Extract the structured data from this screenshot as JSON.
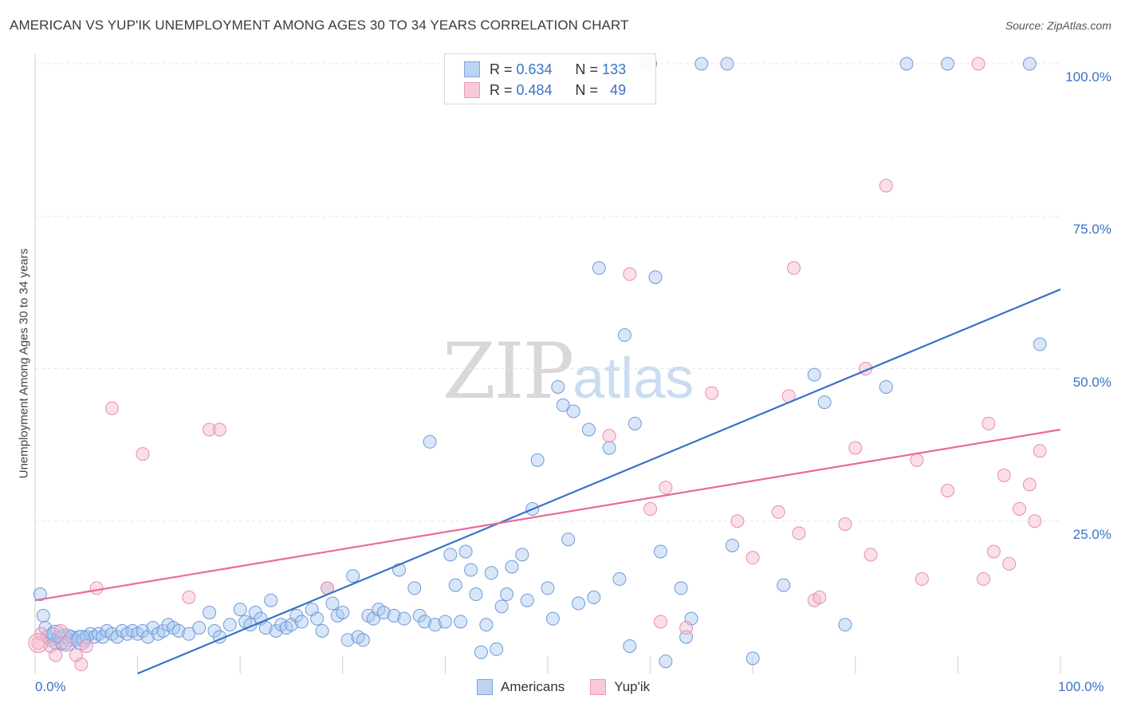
{
  "title": "AMERICAN VS YUP'IK UNEMPLOYMENT AMONG AGES 30 TO 34 YEARS CORRELATION CHART",
  "source": "Source: ZipAtlas.com",
  "watermark": {
    "zip": "ZIP",
    "atlas": "atlas"
  },
  "colors": {
    "blue": "#3a72c4",
    "blue_fill": "#a9c8f0",
    "pink": "#e86a9a",
    "pink_fill": "#f5b8cc",
    "grid": "#e6e6e6"
  },
  "legend_top": {
    "rows": [
      {
        "r_key": "R =",
        "r_value": "0.634",
        "n_key": "N =",
        "n_value": "133"
      },
      {
        "r_key": "R =",
        "r_value": "0.484",
        "n_key": "N =",
        "n_value": "49"
      }
    ]
  },
  "chart_data": {
    "type": "scatter",
    "title": "AMERICAN VS YUP'IK UNEMPLOYMENT AMONG AGES 30 TO 34 YEARS CORRELATION CHART",
    "xlabel": "",
    "ylabel": "Unemployment Among Ages 30 to 34 years",
    "xlim": [
      0,
      100
    ],
    "ylim": [
      0,
      100
    ],
    "x_tick_labels": [
      "0.0%",
      "100.0%"
    ],
    "y_tick_labels": [
      {
        "value": 25,
        "label": "25.0%"
      },
      {
        "value": 50,
        "label": "50.0%"
      },
      {
        "value": 75,
        "label": "75.0%"
      },
      {
        "value": 100,
        "label": "100.0%"
      }
    ],
    "grid": true,
    "legend_position": "bottom",
    "series": [
      {
        "name": "Americans",
        "R": 0.634,
        "N": 133,
        "trend": {
          "x": [
            0,
            100
          ],
          "y": [
            -7,
            63
          ]
        },
        "points": [
          [
            0.5,
            13
          ],
          [
            0.8,
            9.5
          ],
          [
            1,
            7.5
          ],
          [
            1.2,
            6
          ],
          [
            1.5,
            5.5
          ],
          [
            1.8,
            6.5
          ],
          [
            2,
            5
          ],
          [
            2.3,
            6
          ],
          [
            2.6,
            5
          ],
          [
            3,
            6
          ],
          [
            3.3,
            5.5
          ],
          [
            3.6,
            6
          ],
          [
            4,
            5.5
          ],
          [
            4.3,
            6
          ],
          [
            4.7,
            5.5
          ],
          [
            5,
            6
          ],
          [
            5.4,
            6.5
          ],
          [
            5.8,
            6
          ],
          [
            6.2,
            6.5
          ],
          [
            6.6,
            6
          ],
          [
            7,
            7
          ],
          [
            7.5,
            6.5
          ],
          [
            8,
            6
          ],
          [
            8.5,
            7
          ],
          [
            9,
            6.5
          ],
          [
            9.5,
            7
          ],
          [
            10,
            6.5
          ],
          [
            10.5,
            7
          ],
          [
            11,
            6
          ],
          [
            11.5,
            7.5
          ],
          [
            12,
            6.5
          ],
          [
            12.5,
            7
          ],
          [
            13,
            8
          ],
          [
            13.5,
            7.5
          ],
          [
            14,
            7
          ],
          [
            15,
            6.5
          ],
          [
            16,
            7.5
          ],
          [
            17,
            10
          ],
          [
            17.5,
            7
          ],
          [
            18,
            6
          ],
          [
            19,
            8
          ],
          [
            20,
            10.5
          ],
          [
            20.5,
            8.5
          ],
          [
            21,
            8
          ],
          [
            21.5,
            10
          ],
          [
            22,
            9
          ],
          [
            22.5,
            7.5
          ],
          [
            23,
            12
          ],
          [
            23.5,
            7
          ],
          [
            24,
            8
          ],
          [
            24.5,
            7.5
          ],
          [
            25,
            8
          ],
          [
            25.5,
            9.5
          ],
          [
            26,
            8.5
          ],
          [
            27,
            10.5
          ],
          [
            27.5,
            9
          ],
          [
            28,
            7
          ],
          [
            28.5,
            14
          ],
          [
            29,
            11.5
          ],
          [
            29.5,
            9.5
          ],
          [
            30,
            10
          ],
          [
            30.5,
            5.5
          ],
          [
            31,
            16
          ],
          [
            31.5,
            6
          ],
          [
            32,
            5.5
          ],
          [
            32.5,
            9.5
          ],
          [
            33,
            9
          ],
          [
            33.5,
            10.5
          ],
          [
            34,
            10
          ],
          [
            35,
            9.5
          ],
          [
            35.5,
            17
          ],
          [
            36,
            9
          ],
          [
            37,
            14
          ],
          [
            37.5,
            9.5
          ],
          [
            38,
            8.5
          ],
          [
            38.5,
            38
          ],
          [
            39,
            8
          ],
          [
            40,
            8.5
          ],
          [
            40.5,
            19.5
          ],
          [
            41,
            14.5
          ],
          [
            41.5,
            8.5
          ],
          [
            42,
            20
          ],
          [
            42.5,
            17
          ],
          [
            43,
            13
          ],
          [
            43.5,
            3.5
          ],
          [
            44,
            8
          ],
          [
            44.5,
            16.5
          ],
          [
            45,
            4
          ],
          [
            45.5,
            11
          ],
          [
            46,
            13
          ],
          [
            46.5,
            17.5
          ],
          [
            47.5,
            19.5
          ],
          [
            48,
            12
          ],
          [
            48.5,
            27
          ],
          [
            49,
            35
          ],
          [
            50,
            14
          ],
          [
            50.5,
            9
          ],
          [
            51,
            47
          ],
          [
            51.5,
            44
          ],
          [
            52,
            22
          ],
          [
            52.5,
            43
          ],
          [
            53,
            11.5
          ],
          [
            54,
            40
          ],
          [
            54.5,
            12.5
          ],
          [
            55,
            66.5
          ],
          [
            56,
            37
          ],
          [
            57,
            15.5
          ],
          [
            57.5,
            55.5
          ],
          [
            58,
            4.5
          ],
          [
            58.5,
            41
          ],
          [
            59,
            100
          ],
          [
            60,
            100
          ],
          [
            60.5,
            65
          ],
          [
            61,
            20
          ],
          [
            61.5,
            2
          ],
          [
            63,
            14
          ],
          [
            63.5,
            6
          ],
          [
            64,
            9
          ],
          [
            65,
            100
          ],
          [
            67.5,
            100
          ],
          [
            68,
            21
          ],
          [
            70,
            2.5
          ],
          [
            73,
            14.5
          ],
          [
            76,
            49
          ],
          [
            77,
            44.5
          ],
          [
            79,
            8
          ],
          [
            83,
            47
          ],
          [
            85,
            100
          ],
          [
            89,
            100
          ],
          [
            97,
            100
          ],
          [
            98,
            54
          ]
        ]
      },
      {
        "name": "Yup'ik",
        "R": 0.484,
        "N": 49,
        "trend": {
          "x": [
            0,
            100
          ],
          "y": [
            12,
            40
          ]
        },
        "points": [
          [
            0.3,
            5
          ],
          [
            0.6,
            6.5
          ],
          [
            1.5,
            4.5
          ],
          [
            2,
            3
          ],
          [
            2.5,
            7
          ],
          [
            3,
            5
          ],
          [
            4,
            3
          ],
          [
            4.5,
            1.5
          ],
          [
            5,
            4.5
          ],
          [
            6,
            14
          ],
          [
            7.5,
            43.5
          ],
          [
            10.5,
            36
          ],
          [
            15,
            12.5
          ],
          [
            17,
            40
          ],
          [
            18,
            40
          ],
          [
            28.5,
            14
          ],
          [
            56,
            39
          ],
          [
            58,
            65.5
          ],
          [
            60,
            27
          ],
          [
            61,
            8.5
          ],
          [
            61.5,
            30.5
          ],
          [
            63.5,
            7.5
          ],
          [
            66,
            46
          ],
          [
            68.5,
            25
          ],
          [
            70,
            19
          ],
          [
            72.5,
            26.5
          ],
          [
            73.5,
            45.5
          ],
          [
            74,
            66.5
          ],
          [
            74.5,
            23
          ],
          [
            76,
            12
          ],
          [
            76.5,
            12.5
          ],
          [
            79,
            24.5
          ],
          [
            80,
            37
          ],
          [
            81,
            50
          ],
          [
            81.5,
            19.5
          ],
          [
            83,
            80
          ],
          [
            86,
            35
          ],
          [
            86.5,
            15.5
          ],
          [
            89,
            30
          ],
          [
            92,
            100
          ],
          [
            92.5,
            15.5
          ],
          [
            93,
            41
          ],
          [
            93.5,
            20
          ],
          [
            94.5,
            32.5
          ],
          [
            96,
            27
          ],
          [
            97,
            31
          ],
          [
            98,
            36.5
          ],
          [
            95,
            18
          ],
          [
            97.5,
            25
          ]
        ]
      }
    ]
  }
}
